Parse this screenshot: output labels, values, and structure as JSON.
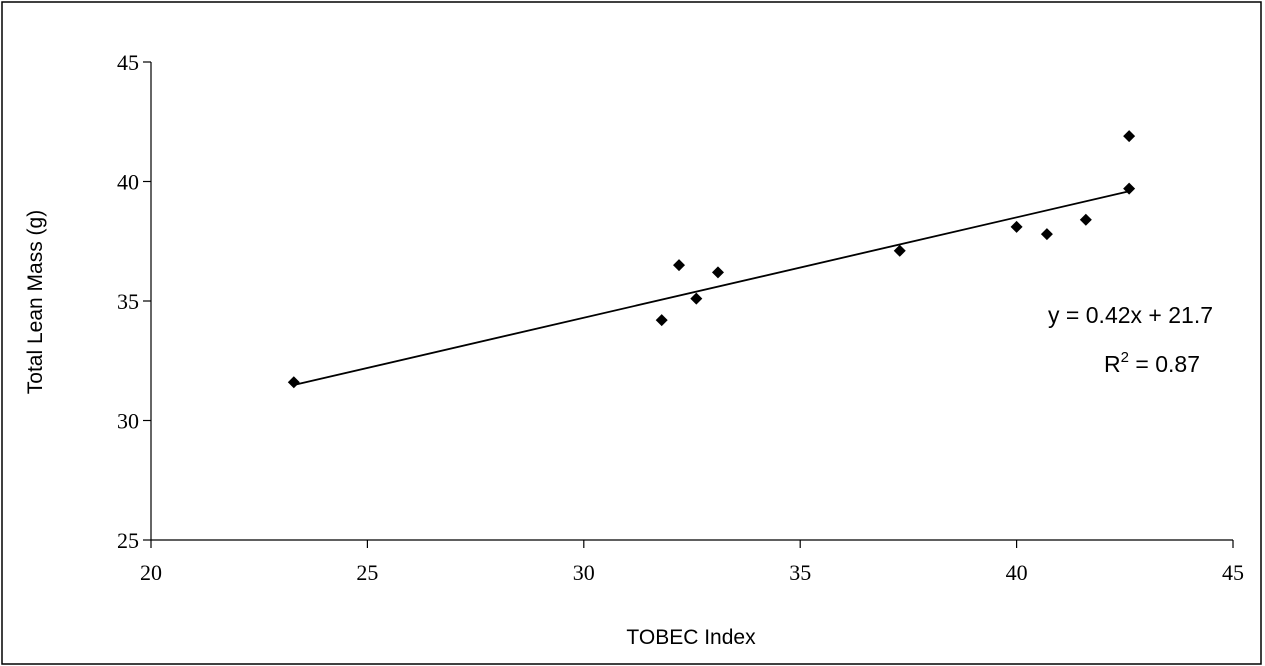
{
  "chart_data": {
    "type": "scatter",
    "xlabel": "TOBEC Index",
    "ylabel": "Total Lean Mass (g)",
    "xlim": [
      20,
      45
    ],
    "ylim": [
      25,
      45
    ],
    "xticks": [
      20,
      25,
      30,
      35,
      40,
      45
    ],
    "yticks": [
      25,
      30,
      35,
      40,
      45
    ],
    "grid": false,
    "series": [
      {
        "points": [
          {
            "x": 23.3,
            "y": 31.6
          },
          {
            "x": 31.8,
            "y": 34.2
          },
          {
            "x": 32.2,
            "y": 36.5
          },
          {
            "x": 32.6,
            "y": 35.1
          },
          {
            "x": 33.1,
            "y": 36.2
          },
          {
            "x": 37.3,
            "y": 37.1
          },
          {
            "x": 40.0,
            "y": 38.1
          },
          {
            "x": 40.7,
            "y": 37.8
          },
          {
            "x": 41.6,
            "y": 38.4
          },
          {
            "x": 42.6,
            "y": 41.9
          },
          {
            "x": 42.6,
            "y": 39.7
          }
        ]
      }
    ],
    "trendline": {
      "slope": 0.42,
      "intercept": 21.7,
      "x_from": 23.3,
      "x_to": 42.6
    },
    "annotations": {
      "equation": "y = 0.42x + 21.7",
      "r_squared_prefix": "R",
      "r_squared_sup": "2",
      "r_squared_suffix": " = 0.87"
    }
  }
}
